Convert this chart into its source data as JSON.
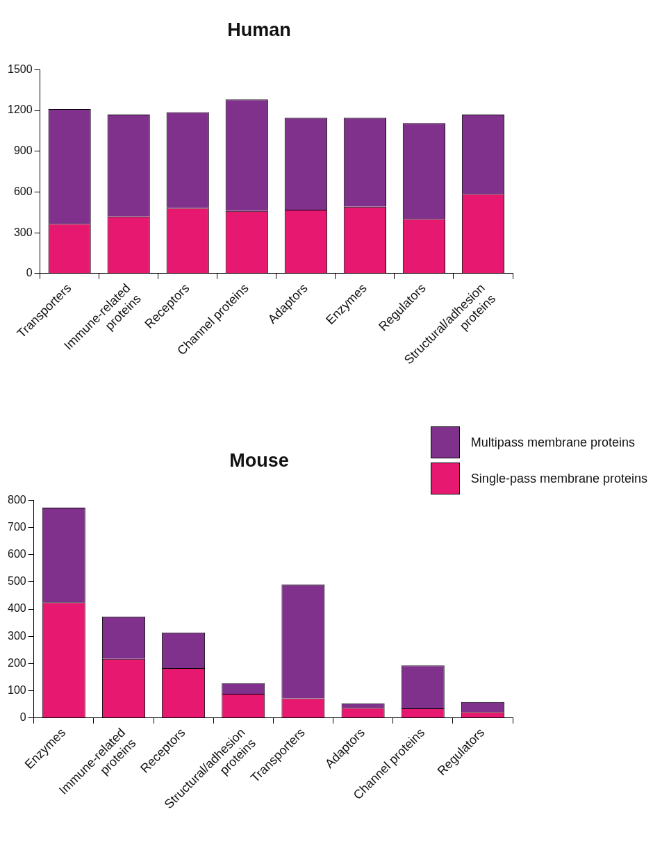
{
  "chart_data": [
    {
      "type": "bar",
      "title": "Human",
      "stacked": true,
      "categories": [
        "Transporters",
        "Immune-related proteins",
        "Receptors",
        "Channel proteins",
        "Adaptors",
        "Enzymes",
        "Regulators",
        "Structural/adhesion proteins"
      ],
      "series": [
        {
          "color": "#e6186f",
          "values": [
            366,
            420,
            482,
            460,
            469,
            491,
            402,
            585
          ]
        },
        {
          "color": "#80318c",
          "values": [
            844,
            750,
            706,
            821,
            678,
            656,
            705,
            585
          ]
        }
      ],
      "ylim": [
        0,
        1500
      ],
      "yticks": [
        0,
        300,
        600,
        900,
        1200,
        1500
      ],
      "grid": false,
      "legend": false
    },
    {
      "type": "bar",
      "title": "Mouse",
      "stacked": true,
      "categories": [
        "Enzymes",
        "Immune-related proteins",
        "Receptors",
        "Structural/adhesion proteins",
        "Transporters",
        "Adaptors",
        "Channel proteins",
        "Regulators"
      ],
      "series": [
        {
          "name": "Single-pass membrane proteins",
          "color": "#e6186f",
          "values": [
            425,
            217,
            183,
            89,
            72,
            37,
            35,
            22
          ]
        },
        {
          "name": "Multipass membrane proteins",
          "color": "#80318c",
          "values": [
            348,
            156,
            131,
            39,
            419,
            17,
            158,
            37
          ]
        }
      ],
      "ylim": [
        0,
        800
      ],
      "yticks": [
        0,
        100,
        200,
        300,
        400,
        500,
        600,
        700,
        800
      ],
      "grid": false,
      "legend": "top right"
    }
  ]
}
